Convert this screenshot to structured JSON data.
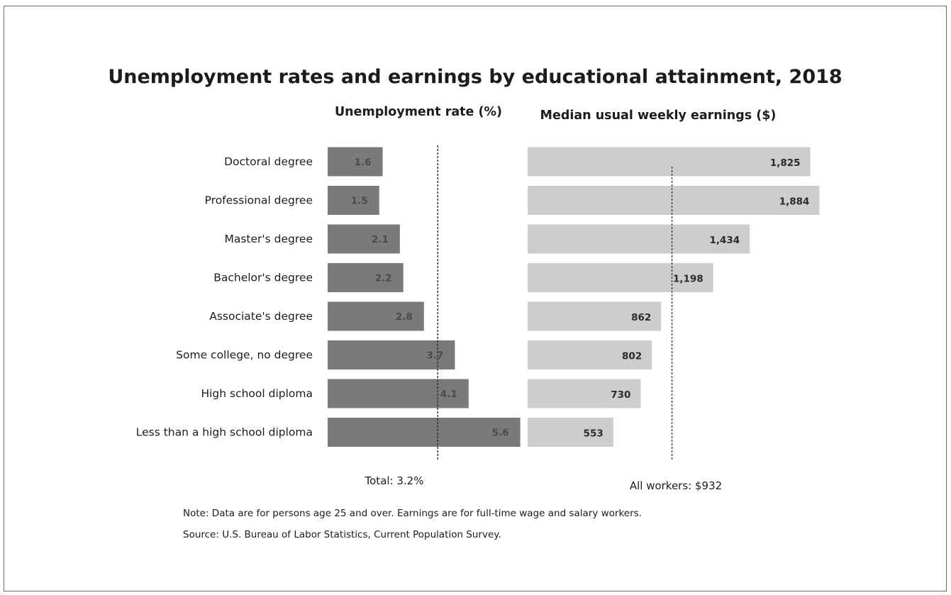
{
  "chart_data": {
    "type": "bar",
    "title": "Unemployment rates and earnings by educational attainment, 2018",
    "categories": [
      "Doctoral degree",
      "Professional degree",
      "Master's degree",
      "Bachelor's degree",
      "Associate's degree",
      "Some college, no degree",
      "High school diploma",
      "Less than a high school diploma"
    ],
    "series": [
      {
        "name": "Unemployment rate (%)",
        "values": [
          1.6,
          1.5,
          2.1,
          2.2,
          2.8,
          3.7,
          4.1,
          5.6
        ],
        "value_labels": [
          "1.6",
          "1.5",
          "2.1",
          "2.2",
          "2.8",
          "3.7",
          "4.1",
          "5.6"
        ],
        "color": "#7a7a7a",
        "reference": {
          "value": 3.2,
          "label": "Total: 3.2%"
        },
        "xlim": [
          0,
          5.6
        ]
      },
      {
        "name": "Median usual weekly earnings ($)",
        "values": [
          1825,
          1884,
          1434,
          1198,
          862,
          802,
          730,
          553
        ],
        "value_labels": [
          "1,825",
          "1,884",
          "1,434",
          "1,198",
          "862",
          "802",
          "730",
          "553"
        ],
        "color": "#cdcdcd",
        "reference": {
          "value": 932,
          "label": "All workers: $932"
        },
        "xlim": [
          0,
          1884
        ]
      }
    ],
    "orientation": "horizontal",
    "legend": "none",
    "grid": false
  },
  "notes": {
    "note": "Note: Data are for persons age 25 and over. Earnings are for full-time wage and salary workers.",
    "source": "Source: U.S. Bureau of Labor Statistics, Current Population Survey."
  }
}
